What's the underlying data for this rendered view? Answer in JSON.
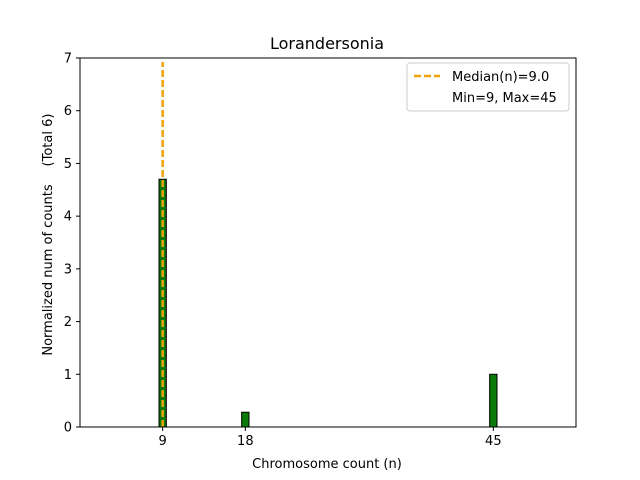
{
  "chart_data": {
    "type": "bar",
    "title": "Lorandersonia",
    "xlabel": "Chromosome count (n)",
    "ylabel": "Normalized num of counts",
    "ylabel_secondary": "(Total 6)",
    "xlim": [
      0,
      54
    ],
    "ylim": [
      0,
      7
    ],
    "yticks": [
      0,
      1,
      2,
      3,
      4,
      5,
      6,
      7
    ],
    "xticks": [
      9,
      18,
      45
    ],
    "bar_width": 0.8,
    "bars": [
      {
        "x": 9,
        "value": 4.7
      },
      {
        "x": 18,
        "value": 0.28
      },
      {
        "x": 45,
        "value": 1.0
      }
    ],
    "median": {
      "x": 9.0,
      "label": "Median(n)=9.0"
    },
    "range_label": "Min=9, Max=45",
    "legend_position": "top-right",
    "colors": {
      "bar_fill": "#0a7a0a",
      "bar_edge": "#000000",
      "median_line": "#f0a30a"
    }
  }
}
